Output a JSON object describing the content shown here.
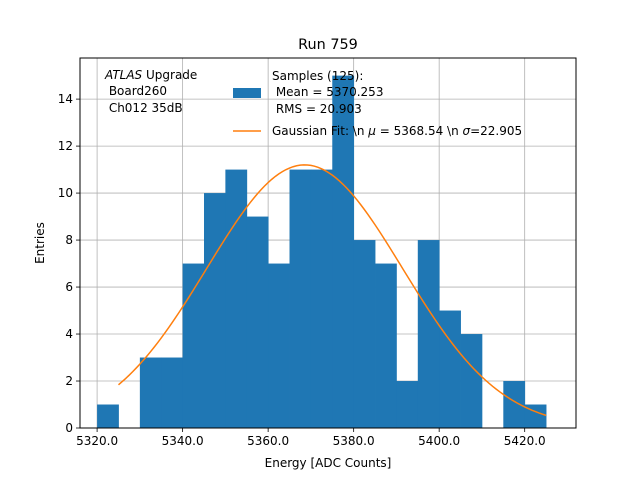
{
  "chart_data": {
    "type": "bar",
    "title": "Run 759",
    "xlabel": "Energy [ADC Counts]",
    "ylabel": "Entries",
    "xlim": [
      5316,
      5432
    ],
    "ylim": [
      0,
      15.75
    ],
    "grid": true,
    "x_ticks": [
      5320,
      5340,
      5360,
      5380,
      5400,
      5420
    ],
    "x_tick_labels": [
      "5320.0",
      "5340.0",
      "5360.0",
      "5380.0",
      "5400.0",
      "5420.0"
    ],
    "y_ticks": [
      0,
      2,
      4,
      6,
      8,
      10,
      12,
      14
    ],
    "y_tick_labels": [
      "0",
      "2",
      "4",
      "6",
      "8",
      "10",
      "12",
      "14"
    ],
    "bin_edges": [
      5320,
      5325,
      5330,
      5335,
      5340,
      5345,
      5350,
      5355,
      5360,
      5365,
      5370,
      5375,
      5380,
      5385,
      5390,
      5395,
      5400,
      5405,
      5410,
      5415,
      5420,
      5425
    ],
    "counts": [
      1,
      0,
      3,
      3,
      7,
      10,
      11,
      9,
      7,
      11,
      11,
      15,
      8,
      7,
      2,
      8,
      5,
      4,
      0,
      2,
      1
    ],
    "series": [
      {
        "name": "Samples (125):\n Mean = 5370.253\n RMS = 20.903",
        "kind": "histogram",
        "color": "#1f77b4"
      },
      {
        "name": "Gaussian Fit: \\n μ = 5368.54 \\n σ=22.905",
        "kind": "line",
        "color": "#ff7f0e",
        "mu": 5368.54,
        "sigma": 22.905,
        "amplitude": 11.2,
        "x_range": [
          5325,
          5425
        ]
      }
    ],
    "legend": {
      "hist_lines": [
        "Samples (125):",
        " Mean = 5370.253",
        " RMS = 20.903"
      ],
      "fit_label": {
        "prefix": "Gaussian Fit: \\n ",
        "mu_symbol": "μ",
        "mu_text": " = 5368.54 \\n ",
        "sigma_symbol": "σ",
        "sigma_text": "=22.905"
      },
      "placement": "top-center"
    },
    "annotation": {
      "italic": "ATLAS",
      "line1": " Upgrade",
      "line2": " Board260",
      "line3": " Ch012 35dB"
    }
  }
}
